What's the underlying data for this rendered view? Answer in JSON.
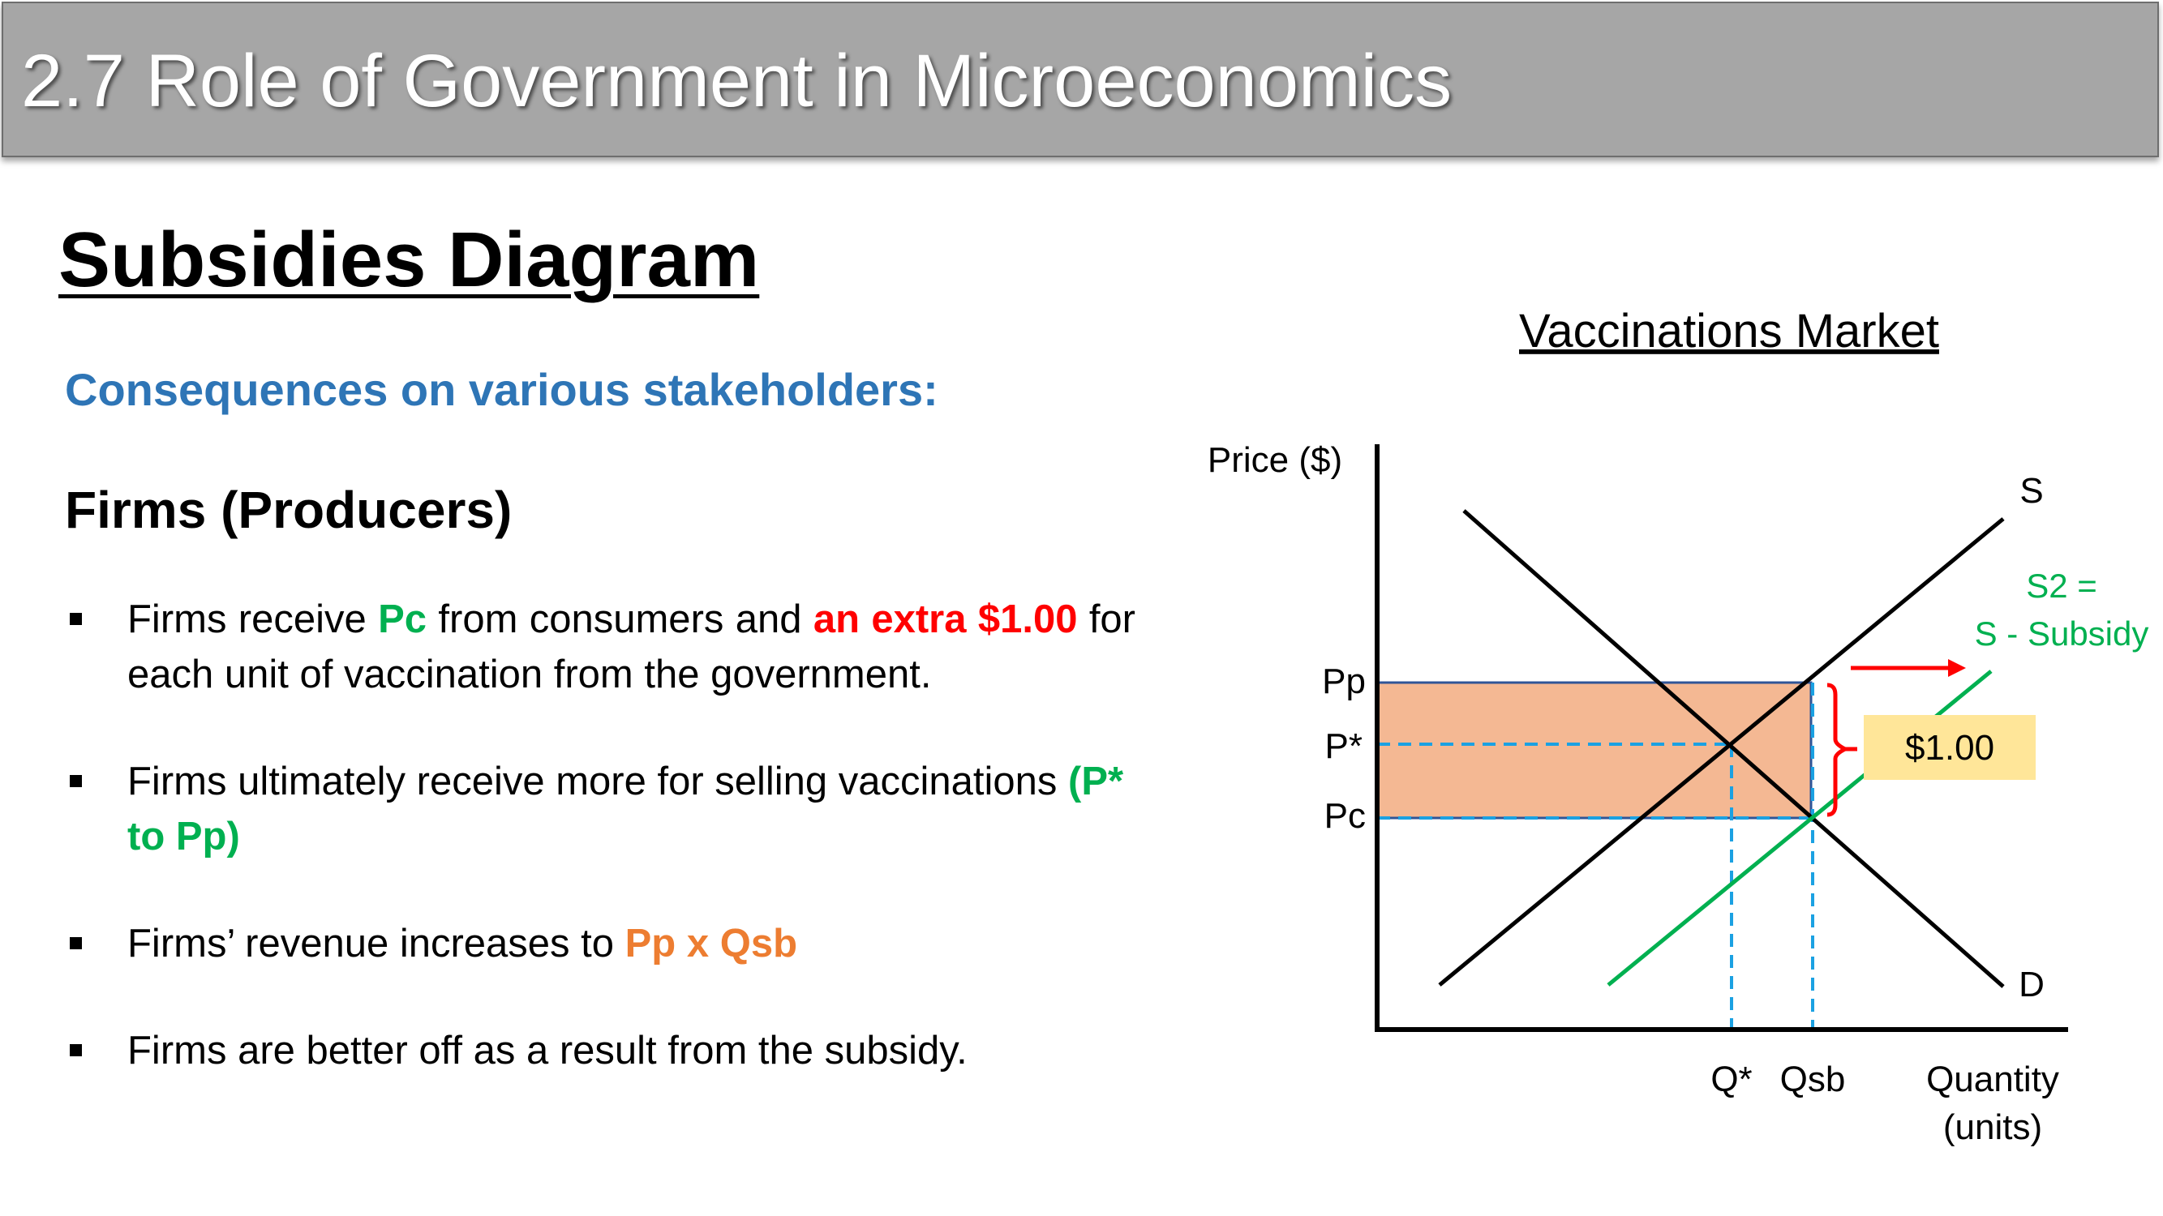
{
  "header": {
    "title": "2.7 Role of Government in Microeconomics"
  },
  "section_title": "Subsidies Diagram",
  "subheading": "Consequences on various stakeholders:",
  "group_heading": "Firms (Producers)",
  "bullets": [
    {
      "parts": [
        "Firms receive ",
        "Pc",
        " from consumers and ",
        "an extra $1.00",
        " for each unit of vaccination from the government."
      ]
    },
    {
      "parts": [
        "Firms ultimately receive more for selling vaccinations ",
        "(P* to Pp)"
      ]
    },
    {
      "parts": [
        "Firms’ revenue increases to ",
        "Pp x Qsb"
      ]
    },
    {
      "parts": [
        "Firms are better off as a result from the subsidy."
      ]
    }
  ],
  "diagram": {
    "title": "Vaccinations Market",
    "y_axis_label": "Price ($)",
    "x_axis_label_line1": "Quantity",
    "x_axis_label_line2": "(units)",
    "supply_label": "S",
    "demand_label": "D",
    "subsidised_supply_label_line1": "S2 =",
    "subsidised_supply_label_line2": "S - Subsidy",
    "price_labels": {
      "pp": "Pp",
      "pstar": "P*",
      "pc": "Pc"
    },
    "quantity_labels": {
      "qstar": "Q*",
      "qsb": "Qsb"
    },
    "subsidy_box": "$1.00",
    "colors": {
      "revenue_area": "#f4b893",
      "subsidised_supply": "#00b050",
      "bracket_and_arrow": "#ff0000",
      "guide_lines": "#1ba1e2",
      "subsidy_box": "#ffe699",
      "heading_blue": "#2e75b6"
    }
  }
}
